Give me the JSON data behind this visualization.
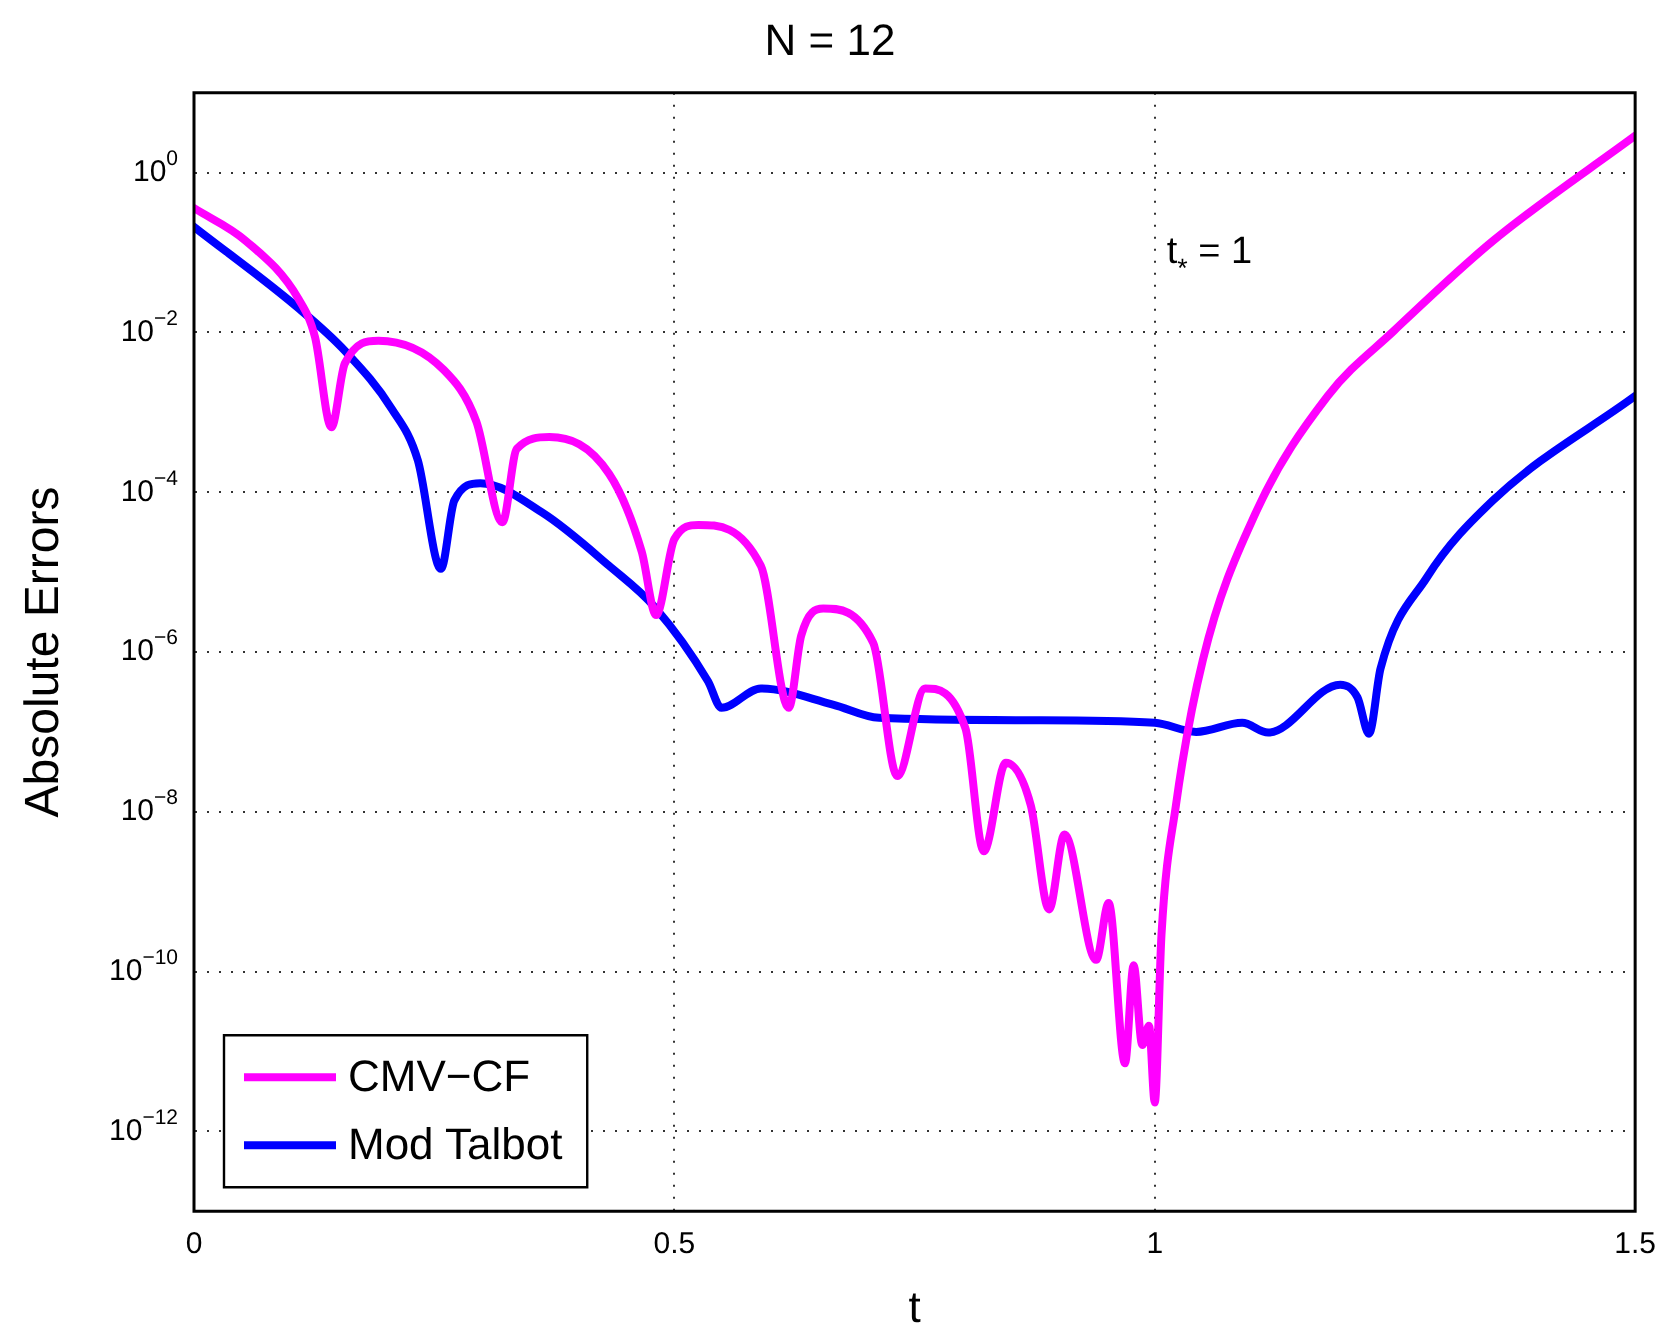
{
  "chart_data": {
    "type": "line",
    "title": "N = 12",
    "xlabel": "t",
    "ylabel": "Absolute Errors",
    "annotations": [
      "t$_{*}$ = 1"
    ],
    "log": "y",
    "grid": true,
    "legend": "bottom left",
    "marker": "none",
    "line_style": "solid",
    "xlim": [
      0,
      1.5
    ],
    "xticks": [
      0,
      0.5,
      1,
      1.5
    ],
    "ylim": [
      1e-13,
      10
    ],
    "yticks": [
      {
        "value": 1e-12,
        "label": "10$^{−12}$"
      },
      {
        "value": 1e-10,
        "label": "10$^{−10}$"
      },
      {
        "value": 1e-08,
        "label": "10$^{−8}$"
      },
      {
        "value": 1e-06,
        "label": "10$^{−6}$"
      },
      {
        "value": 0.0001,
        "label": "10$^{−4}$"
      },
      {
        "value": 0.01,
        "label": "10$^{−2}$"
      },
      {
        "value": 1,
        "label": "10$^{0}$"
      }
    ],
    "series": [
      {
        "name": "CMV−CF",
        "color": "#ff00ff",
        "x": [
          0,
          0.054,
          0.109,
          0.126,
          0.143,
          0.157,
          0.192,
          0.26,
          0.294,
          0.321,
          0.336,
          0.37,
          0.432,
          0.466,
          0.481,
          0.5,
          0.525,
          0.59,
          0.619,
          0.632,
          0.655,
          0.707,
          0.732,
          0.761,
          0.803,
          0.822,
          0.845,
          0.871,
          0.89,
          0.906,
          0.939,
          0.952,
          0.969,
          0.978,
          0.987,
          0.994,
          1.0,
          1.007,
          1.022,
          1.05,
          1.105,
          1.18,
          1.249,
          1.352,
          1.5
        ],
        "values": [
          0.36,
          0.14,
          0.026,
          0.0087,
          0.00065,
          0.0041,
          0.0079,
          0.0034,
          0.00076,
          4.2e-05,
          0.00035,
          0.00049,
          0.00017,
          1.8e-05,
          2.9e-06,
          2.6e-05,
          3.9e-05,
          1.2e-05,
          2e-07,
          1.6e-06,
          3.5e-06,
          1.3e-06,
          2.8e-08,
          3.5e-07,
          1.1e-07,
          3.2e-09,
          4.1e-08,
          1.2e-08,
          6e-10,
          5.2e-09,
          1.4e-10,
          7.2e-10,
          7.1e-12,
          1.2e-10,
          1.2e-11,
          2.1e-11,
          2.3e-12,
          2.9e-10,
          1.2e-08,
          7.9e-07,
          5.5e-05,
          0.0016,
          0.0105,
          0.14,
          2.9
        ]
      },
      {
        "name": "Mod Talbot",
        "color": "#0000ff",
        "x": [
          0,
          0.109,
          0.157,
          0.206,
          0.233,
          0.257,
          0.271,
          0.298,
          0.363,
          0.432,
          0.48,
          0.535,
          0.549,
          0.59,
          0.665,
          0.713,
          0.871,
          1.0,
          1.043,
          1.091,
          1.118,
          1.193,
          1.211,
          1.223,
          1.235,
          1.283,
          1.352,
          1.5
        ],
        "values": [
          0.21,
          0.02,
          0.0059,
          0.0011,
          0.00025,
          1.1e-05,
          7.9e-05,
          0.00013,
          5.5e-05,
          1.2e-05,
          3.6e-06,
          4.3e-07,
          2e-07,
          3.5e-07,
          2.2e-07,
          1.5e-07,
          1.4e-07,
          1.3e-07,
          1e-07,
          1.3e-07,
          9.8e-08,
          3.9e-07,
          2.7e-07,
          9.5e-08,
          6.2e-07,
          8.5e-06,
          7.9e-05,
          0.0016
        ]
      }
    ]
  }
}
